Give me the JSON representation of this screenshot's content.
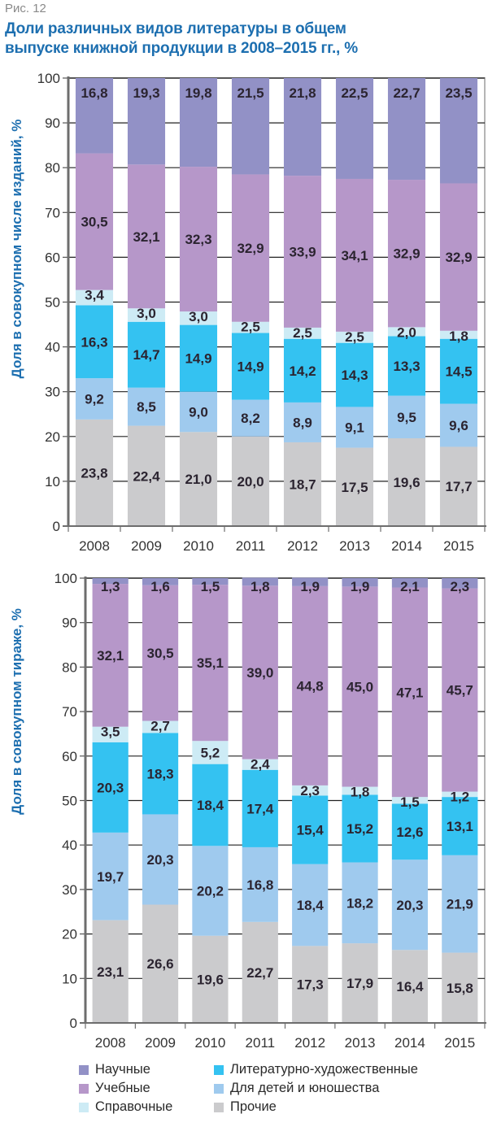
{
  "figure_label": "Рис. 12",
  "title": "Доли различных видов литературы в общем выпуске книжной продукции в 2008–2015 гг., %",
  "title_lines": [
    "Доли различных видов литературы в общем",
    "выпуске книжной продукции в 2008–2015 гг., %"
  ],
  "colors": {
    "Научные": "#9291c6",
    "Учебные": "#b697c9",
    "Справочные": "#cdebf5",
    "Литературно-художественные": "#34c2f1",
    "Для детей и юношества": "#9fcaee",
    "Прочие": "#cbcbcd",
    "title": "#1d6fb0"
  },
  "legend": {
    "items": [
      {
        "label": "Научные",
        "key": "Научные"
      },
      {
        "label": "Учебные",
        "key": "Учебные"
      },
      {
        "label": "Справочные",
        "key": "Справочные"
      },
      {
        "label": "Литературно-художественные",
        "key": "Литературно-художественные"
      },
      {
        "label": "Для детей и юношества",
        "key": "Для детей и юношества"
      },
      {
        "label": "Прочие",
        "key": "Прочие"
      }
    ]
  },
  "chart_data": [
    {
      "type": "bar",
      "stacked": true,
      "ylabel": "Доля в совокупном числе изданий, %",
      "xlabel": "",
      "ylim": [
        0,
        100
      ],
      "yticks": [
        0,
        10,
        20,
        30,
        40,
        50,
        60,
        70,
        80,
        90,
        100
      ],
      "grid": true,
      "categories": [
        "2008",
        "2009",
        "2010",
        "2011",
        "2012",
        "2013",
        "2014",
        "2015"
      ],
      "series": [
        {
          "name": "Прочие",
          "values": [
            "23,8",
            "22,4",
            "21,0",
            "20,0",
            "18,7",
            "17,5",
            "19,6",
            "17,7"
          ]
        },
        {
          "name": "Для детей и юношества",
          "values": [
            "9,2",
            "8,5",
            "9,0",
            "8,2",
            "8,9",
            "9,1",
            "9,5",
            "9,6"
          ]
        },
        {
          "name": "Литературно-художественные",
          "values": [
            "16,3",
            "14,7",
            "14,9",
            "14,9",
            "14,2",
            "14,3",
            "13,3",
            "14,5"
          ]
        },
        {
          "name": "Справочные",
          "values": [
            "3,4",
            "3,0",
            "3,0",
            "2,5",
            "2,5",
            "2,5",
            "2,0",
            "1,8"
          ]
        },
        {
          "name": "Учебные",
          "values": [
            "30,5",
            "32,1",
            "32,3",
            "32,9",
            "33,9",
            "34,1",
            "32,9",
            "32,9"
          ]
        },
        {
          "name": "Научные",
          "values": [
            "16,8",
            "19,3",
            "19,8",
            "21,5",
            "21,8",
            "22,5",
            "22,7",
            "23,5"
          ]
        }
      ]
    },
    {
      "type": "bar",
      "stacked": true,
      "ylabel": "Доля в совокупном тираже, %",
      "xlabel": "",
      "ylim": [
        0,
        100
      ],
      "yticks": [
        0,
        10,
        20,
        30,
        40,
        50,
        60,
        70,
        80,
        90,
        100
      ],
      "grid": true,
      "categories": [
        "2008",
        "2009",
        "2010",
        "2011",
        "2012",
        "2013",
        "2014",
        "2015"
      ],
      "series": [
        {
          "name": "Прочие",
          "values": [
            "23,1",
            "26,6",
            "19,6",
            "22,7",
            "17,3",
            "17,9",
            "16,4",
            "15,8"
          ]
        },
        {
          "name": "Для детей и юношества",
          "values": [
            "19,7",
            "20,3",
            "20,2",
            "16,8",
            "18,4",
            "18,2",
            "20,3",
            "21,9"
          ]
        },
        {
          "name": "Литературно-художественные",
          "values": [
            "20,3",
            "18,3",
            "18,4",
            "17,4",
            "15,4",
            "15,2",
            "12,6",
            "13,1"
          ]
        },
        {
          "name": "Справочные",
          "values": [
            "3,5",
            "2,7",
            "5,2",
            "2,4",
            "2,3",
            "1,8",
            "1,5",
            "1,2"
          ]
        },
        {
          "name": "Учебные",
          "values": [
            "32,1",
            "30,5",
            "35,1",
            "39,0",
            "44,8",
            "45,0",
            "47,1",
            "45,7"
          ]
        },
        {
          "name": "Научные",
          "values": [
            "1,3",
            "1,6",
            "1,5",
            "1,8",
            "1,9",
            "1,9",
            "2,1",
            "2,3"
          ]
        }
      ]
    }
  ]
}
